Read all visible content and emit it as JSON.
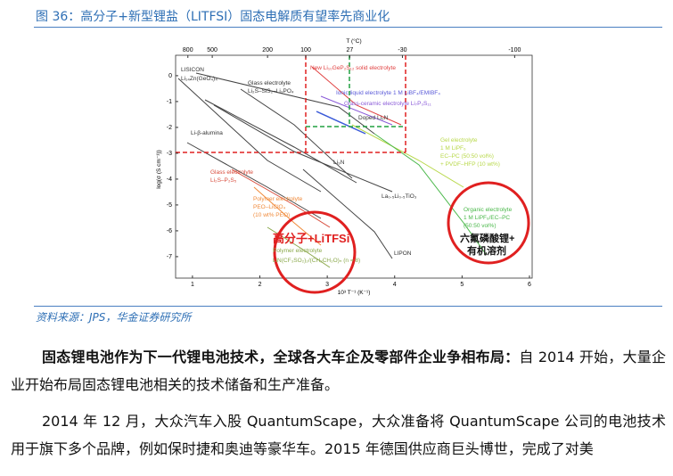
{
  "header": {
    "title": "图 36：高分子+新型锂盐（LITFSI）固态电解质有望率先商业化"
  },
  "figure": {
    "chart_data": {
      "type": "line",
      "x_label": "10³ T⁻¹ (K⁻¹)",
      "x2_label": "T (°C)",
      "y_label": "log(σ (S cm⁻¹))",
      "xlim": [
        0.75,
        6.04
      ],
      "xticks": [
        1,
        2,
        3,
        4,
        5,
        6
      ],
      "x2ticks": [
        800,
        500,
        200,
        100,
        27,
        -30,
        -100
      ],
      "ylim": [
        -7.83,
        0.79
      ],
      "yticks": [
        0,
        -1,
        -2,
        -3,
        -4,
        -5,
        -6,
        -7
      ],
      "annotations": [
        "LISICON",
        "Li₁₄Zn(GeO₄)₄",
        "Glass electrolyte",
        "Li₂S–SiS₂–Li₃PO₄",
        "Li-β-alumina",
        "Glass electrolyte",
        "Li₂S–P₂S₅",
        "Polymer electrolyte",
        "PEO–LiClO₄",
        "(10 wt% PEO)",
        "New Li₁₀GeP₂S₁₂ solid electrolyte",
        "Ionic liquid electrolyte 1 M LiBF₄/EMIBF₄",
        "Glass-ceramic electrolyte Li₇P₃S₁₁",
        "Doped Li₃N",
        "Li₃N",
        "La₀.₅Li₀.₅TiO₃",
        "Gel electrolyte",
        "1 M LiPF₆",
        "EC–PC (50:50 vol%)",
        "+ PVDF–HFP (10 wt%)",
        "Organic electrolyte",
        "1 M LiPF₆/EC–PC",
        "(50:50 vol%)",
        "LIPON",
        "Polymer electrolyte",
        "LiN(CF₃SO₂)₂/(CH₂CH₂O)ₙ (n = 8)"
      ],
      "callouts": [
        "高分子+LiTFSi",
        "六氟磷酸锂+",
        "有机溶剂"
      ]
    }
  },
  "source": "资料来源：JPS，华金证券研究所",
  "body": {
    "paragraphs": [
      {
        "lead": "固态锂电池作为下一代锂电池技术，全球各大车企及零部件企业争相布局：",
        "text": "自 2014 开始，大量企业开始布局固态锂电池相关的技术储备和生产准备。"
      },
      {
        "text": "2014 年 12 月，大众汽车入股 QuantumScape，大众准备将 QuantumScape 公司的电池技术用于旗下多个品牌，例如保时捷和奥迪等豪华车。2015 年德国供应商巨头博世，完成了对美"
      }
    ]
  }
}
